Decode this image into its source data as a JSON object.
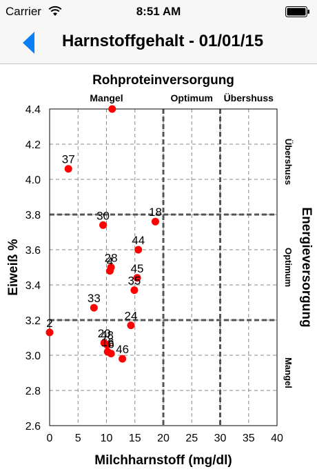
{
  "status_bar": {
    "carrier": "Carrier",
    "time": "8:51 AM",
    "wifi_icon": "wifi-icon",
    "battery_icon": "battery-icon"
  },
  "nav": {
    "back_icon": "back-arrow-icon",
    "title": "Harnstoffgehalt - 01/01/15"
  },
  "colors": {
    "point": "#ff0000",
    "back_arrow": "#0a7ff5",
    "grid": "#888888",
    "threshold": "#555555"
  },
  "chart_data": {
    "type": "scatter",
    "title": "Rohproteinversorgung",
    "xlabel": "Milchharnstoff (mg/dl)",
    "ylabel": "Eiweiß %",
    "xlim": [
      0,
      40
    ],
    "ylim": [
      2.6,
      4.4
    ],
    "x_ticks": [
      "0",
      "5",
      "10",
      "15",
      "20",
      "25",
      "30",
      "35",
      "40"
    ],
    "y_ticks": [
      "2.6",
      "2.8",
      "3.0",
      "3.2",
      "3.4",
      "3.6",
      "3.8",
      "4.0",
      "4.2",
      "4.4"
    ],
    "grid": true,
    "x_thresholds": [
      20,
      30
    ],
    "y_thresholds": [
      3.2,
      3.8
    ],
    "x_zones": [
      "Mangel",
      "Optimum",
      "Übershuss"
    ],
    "right_axis_label": "Energieversorgung",
    "y_zones": [
      "Mangel",
      "Optimum",
      "Übershuss"
    ],
    "points": [
      {
        "label": "",
        "x": 11,
        "y": 4.4
      },
      {
        "label": "37",
        "x": 3.3,
        "y": 4.06
      },
      {
        "label": "18",
        "x": 18.6,
        "y": 3.76
      },
      {
        "label": "30",
        "x": 9.4,
        "y": 3.74
      },
      {
        "label": "44",
        "x": 15.6,
        "y": 3.6
      },
      {
        "label": "28",
        "x": 10.8,
        "y": 3.5
      },
      {
        "label": "4",
        "x": 10.6,
        "y": 3.48
      },
      {
        "label": "45",
        "x": 15.4,
        "y": 3.44
      },
      {
        "label": "35",
        "x": 14.9,
        "y": 3.37
      },
      {
        "label": "33",
        "x": 7.8,
        "y": 3.27
      },
      {
        "label": "24",
        "x": 14.3,
        "y": 3.17
      },
      {
        "label": "2",
        "x": 0,
        "y": 3.13
      },
      {
        "label": "20",
        "x": 9.6,
        "y": 3.07
      },
      {
        "label": "48",
        "x": 10.1,
        "y": 3.06
      },
      {
        "label": "16",
        "x": 10.2,
        "y": 3.02
      },
      {
        "label": "6",
        "x": 10.8,
        "y": 3.01
      },
      {
        "label": "46",
        "x": 12.8,
        "y": 2.98
      }
    ]
  }
}
